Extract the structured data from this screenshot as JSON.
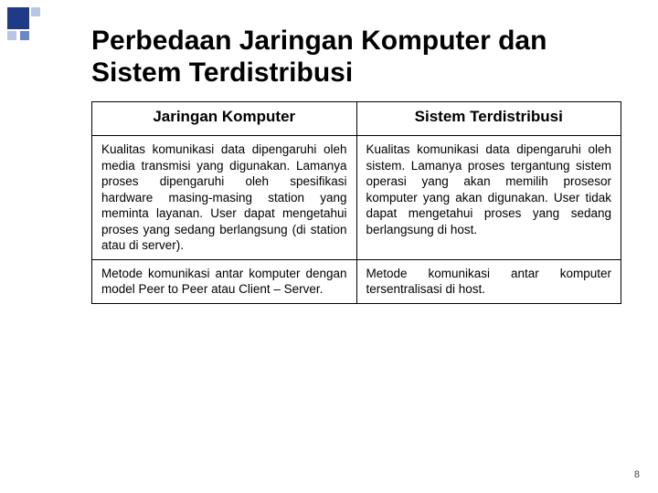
{
  "decor": {
    "colors": {
      "dark": "#1f3b87",
      "mid": "#6a87c6",
      "light": "#b8c6e6"
    }
  },
  "title": "Perbedaan Jaringan Komputer dan Sistem Terdistribusi",
  "table": {
    "headers": [
      "Jaringan Komputer",
      "Sistem Terdistribusi"
    ],
    "rows": [
      [
        "Kualitas komunikasi data dipengaruhi oleh media transmisi yang digunakan.\nLamanya proses dipengaruhi oleh spesifikasi hardware masing-masing station yang meminta layanan.\nUser dapat mengetahui proses yang sedang berlangsung (di station atau di server).",
        "Kualitas komunikasi data dipengaruhi oleh sistem.\nLamanya proses tergantung sistem operasi yang akan memilih prosesor komputer yang akan digunakan.\nUser tidak dapat mengetahui proses yang sedang berlangsung di host."
      ],
      [
        "Metode komunikasi antar komputer dengan model Peer to Peer atau Client – Server.",
        "Metode komunikasi antar komputer tersentralisasi di host."
      ]
    ]
  },
  "page_number": "8",
  "style": {
    "title_fontsize": 30,
    "header_fontsize": 17,
    "cell_fontsize": 13.5,
    "border_color": "#000000",
    "background": "#ffffff"
  }
}
